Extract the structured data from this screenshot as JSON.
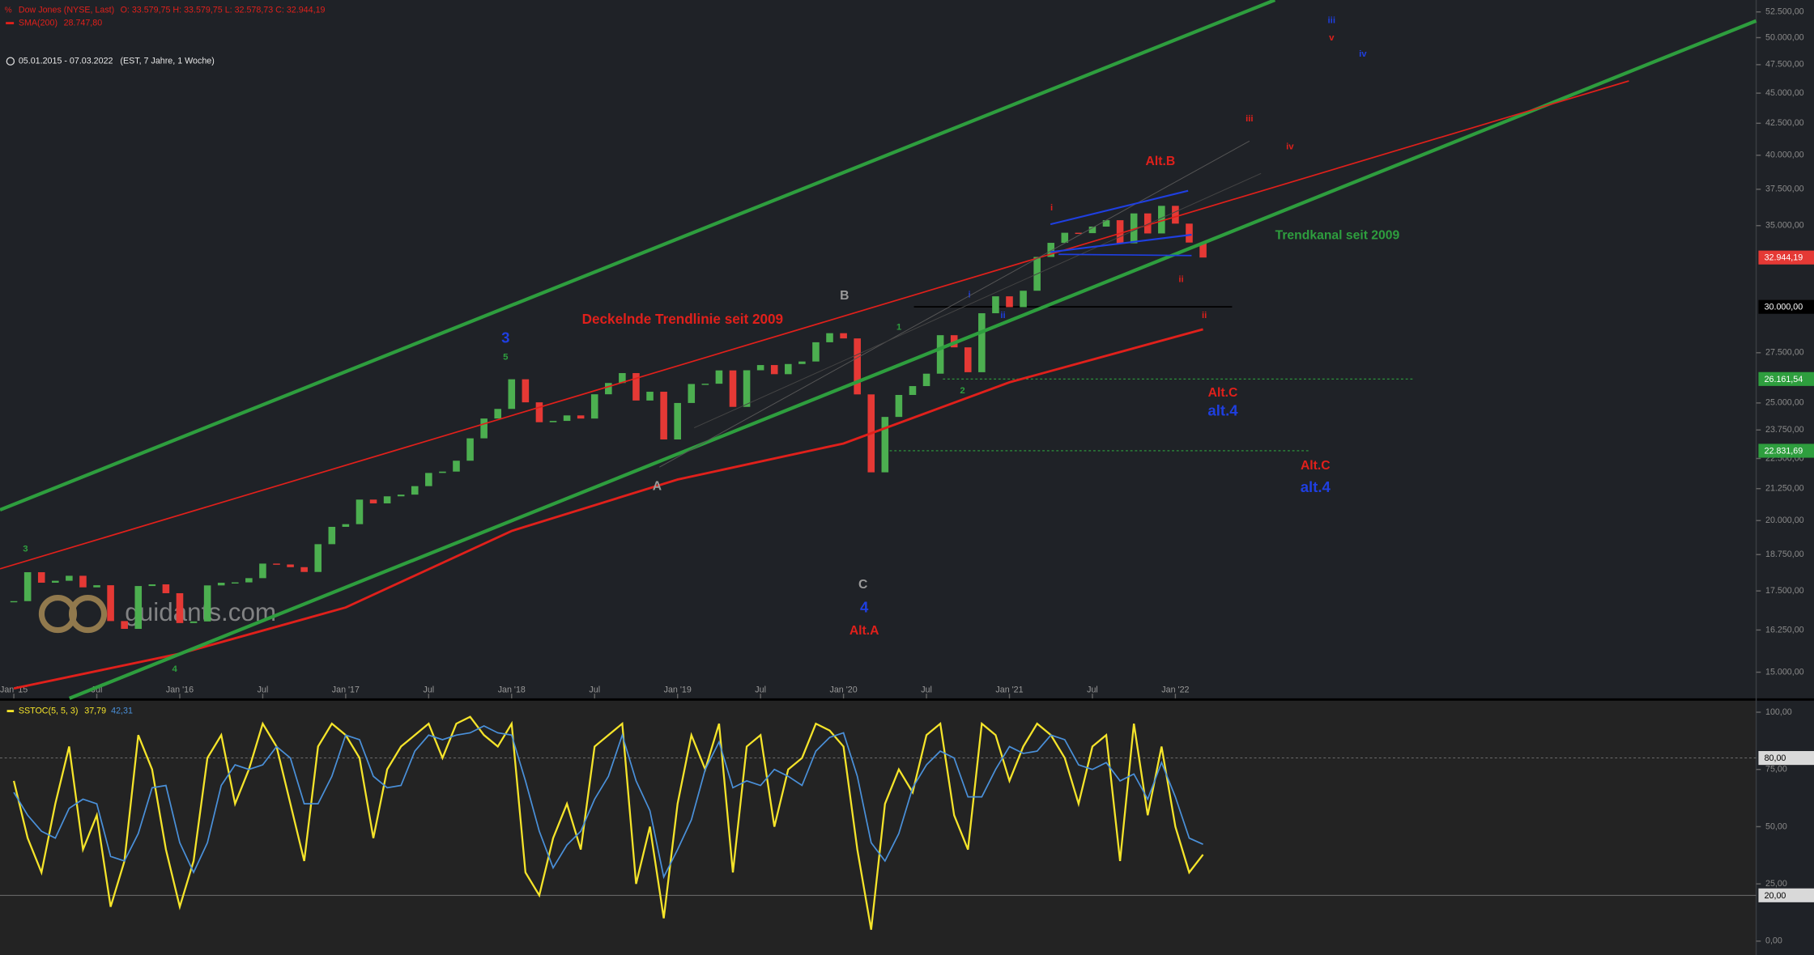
{
  "chart_data": [
    {
      "type": "candlestick",
      "subtitle": "05.01.2015 - 07.03.2022   (EST, 7 Jahre, 1 Woche)",
      "header_values": "O: 33.579,75   H: 33.579,75   L: 32.578,73   C: 32.944,19",
      "watermark": "guidants.com",
      "log_scale": true,
      "xlim": [
        "2014-12",
        "2025-07"
      ],
      "xticks": [
        {
          "value": "2015-01",
          "label": "Jan '15"
        },
        {
          "value": "2015-07",
          "label": "Jul"
        },
        {
          "value": "2016-01",
          "label": "Jan '16"
        },
        {
          "value": "2016-07",
          "label": "Jul"
        },
        {
          "value": "2017-01",
          "label": "Jan '17"
        },
        {
          "value": "2017-07",
          "label": "Jul"
        },
        {
          "value": "2018-01",
          "label": "Jan '18"
        },
        {
          "value": "2018-07",
          "label": "Jul"
        },
        {
          "value": "2019-01",
          "label": "Jan '19"
        },
        {
          "value": "2019-07",
          "label": "Jul"
        },
        {
          "value": "2020-01",
          "label": "Jan '20"
        },
        {
          "value": "2020-07",
          "label": "Jul"
        },
        {
          "value": "2021-01",
          "label": "Jan '21"
        },
        {
          "value": "2021-07",
          "label": "Jul"
        },
        {
          "value": "2022-01",
          "label": "Jan '22"
        }
      ],
      "ylim": [
        14400,
        53700
      ],
      "yticks": [
        {
          "value": 52500,
          "label": "52.500,00"
        },
        {
          "value": 50000,
          "label": "50.000,00"
        },
        {
          "value": 47500,
          "label": "47.500,00"
        },
        {
          "value": 45000,
          "label": "45.000,00"
        },
        {
          "value": 42500,
          "label": "42.500,00"
        },
        {
          "value": 40000,
          "label": "40.000,00"
        },
        {
          "value": 37500,
          "label": "37.500,00"
        },
        {
          "value": 35000,
          "label": "35.000,00"
        },
        {
          "value": 27500,
          "label": "27.500,00"
        },
        {
          "value": 25000,
          "label": "25.000,00"
        },
        {
          "value": 23750,
          "label": "23.750,00"
        },
        {
          "value": 22500,
          "label": "22.500,00"
        },
        {
          "value": 21250,
          "label": "21.250,00"
        },
        {
          "value": 20000,
          "label": "20.000,00"
        },
        {
          "value": 18750,
          "label": "18.750,00"
        },
        {
          "value": 17500,
          "label": "17.500,00"
        },
        {
          "value": 16250,
          "label": "16.250,00"
        },
        {
          "value": 15000,
          "label": "15.000,00"
        }
      ],
      "price_tags": [
        {
          "value": 32944.19,
          "label": "32.944,19",
          "color": "#e53935"
        },
        {
          "value": 30000,
          "label": "30.000,00",
          "color": "#000000"
        },
        {
          "value": 26161.54,
          "label": "26.161,54",
          "color": "#2e9e3e"
        },
        {
          "value": 22831.69,
          "label": "22.831,69",
          "color": "#2e9e3e"
        }
      ],
      "series": [
        {
          "name": "Dow Jones (NYSE, Last)",
          "color": "#4caf50",
          "down_color": "#e53935",
          "x": [
            "2015-01",
            "2015-02",
            "2015-03",
            "2015-04",
            "2015-05",
            "2015-06",
            "2015-07",
            "2015-08",
            "2015-09",
            "2015-10",
            "2015-11",
            "2015-12",
            "2016-01",
            "2016-02",
            "2016-03",
            "2016-04",
            "2016-05",
            "2016-06",
            "2016-07",
            "2016-08",
            "2016-09",
            "2016-10",
            "2016-11",
            "2016-12",
            "2017-01",
            "2017-02",
            "2017-03",
            "2017-04",
            "2017-05",
            "2017-06",
            "2017-07",
            "2017-08",
            "2017-09",
            "2017-10",
            "2017-11",
            "2017-12",
            "2018-01",
            "2018-02",
            "2018-03",
            "2018-04",
            "2018-05",
            "2018-06",
            "2018-07",
            "2018-08",
            "2018-09",
            "2018-10",
            "2018-11",
            "2018-12",
            "2019-01",
            "2019-02",
            "2019-03",
            "2019-04",
            "2019-05",
            "2019-06",
            "2019-07",
            "2019-08",
            "2019-09",
            "2019-10",
            "2019-11",
            "2019-12",
            "2020-01",
            "2020-02",
            "2020-03",
            "2020-04",
            "2020-05",
            "2020-06",
            "2020-07",
            "2020-08",
            "2020-09",
            "2020-10",
            "2020-11",
            "2020-12",
            "2021-01",
            "2021-02",
            "2021-03",
            "2021-04",
            "2021-05",
            "2021-06",
            "2021-07",
            "2021-08",
            "2021-09",
            "2021-10",
            "2021-11",
            "2021-12",
            "2022-01",
            "2022-02",
            "2022-03"
          ],
          "values": [
            17165,
            18133,
            17776,
            17841,
            18011,
            17620,
            17690,
            16528,
            16285,
            17664,
            17720,
            17425,
            16466,
            16517,
            17685,
            17774,
            17787,
            17930,
            18432,
            18401,
            18308,
            18142,
            19124,
            19763,
            19864,
            20812,
            20663,
            20941,
            21009,
            21350,
            21891,
            21948,
            22405,
            23377,
            24272,
            24719,
            26149,
            25029,
            24103,
            24163,
            24416,
            24271,
            25415,
            25965,
            26458,
            25116,
            25538,
            23327,
            24999,
            25916,
            25929,
            26593,
            24815,
            26600,
            26864,
            26403,
            26917,
            27046,
            28051,
            28538,
            28256,
            25409,
            21917,
            24346,
            25383,
            25813,
            26428,
            28430,
            27782,
            26502,
            29639,
            30606,
            29983,
            30932,
            32982,
            33875,
            34529,
            34503,
            34935,
            35361,
            33844,
            35820,
            34484,
            36338,
            35132,
            33893,
            32944.19
          ]
        },
        {
          "name": "SMA(200)",
          "color": "#e0201b",
          "value_label": "28.747,80",
          "x": [
            "2015-01",
            "2016-01",
            "2017-01",
            "2018-01",
            "2019-01",
            "2020-01",
            "2021-01",
            "2022-03"
          ],
          "values": [
            14545,
            15536,
            16960,
            19610,
            21620,
            23150,
            26000,
            28747.8
          ]
        }
      ],
      "annotations": [
        {
          "text": "Deckelnde Trendlinie seit 2009",
          "color": "#e0201b"
        },
        {
          "text": "Trendkanal seit 2009",
          "color": "#2e9e3e"
        },
        {
          "text": "3",
          "color": "#1f3fe0"
        },
        {
          "text": "5",
          "color": "#2e9e3e"
        },
        {
          "text": "B",
          "color": "#9a9a9a"
        },
        {
          "text": "A",
          "color": "#9a9a9a"
        },
        {
          "text": "C",
          "color": "#9a9a9a"
        },
        {
          "text": "4",
          "color": "#1f3fe0"
        },
        {
          "text": "Alt.A",
          "color": "#e0201b"
        },
        {
          "text": "Alt.B",
          "color": "#e0201b"
        },
        {
          "text": "Alt.C",
          "color": "#e0201b"
        },
        {
          "text": "alt.4",
          "color": "#1f3fe0"
        },
        {
          "text": "Alt.C",
          "color": "#e0201b"
        },
        {
          "text": "alt.4",
          "color": "#1f3fe0"
        },
        {
          "text": "3",
          "color": "#2e9e3e"
        },
        {
          "text": "4",
          "color": "#2e9e3e"
        },
        {
          "text": "1",
          "color": "#2e9e3e"
        },
        {
          "text": "2",
          "color": "#2e9e3e"
        },
        {
          "text": "i",
          "color": "#e0201b"
        },
        {
          "text": "ii",
          "color": "#e0201b"
        },
        {
          "text": "ii",
          "color": "#e0201b"
        },
        {
          "text": "iii",
          "color": "#e0201b"
        },
        {
          "text": "iv",
          "color": "#e0201b"
        },
        {
          "text": "iii",
          "color": "#1f3fe0"
        },
        {
          "text": "v",
          "color": "#e0201b"
        },
        {
          "text": "iv",
          "color": "#1f3fe0"
        },
        {
          "text": "i",
          "color": "#1f3fe0"
        },
        {
          "text": "ii",
          "color": "#1f3fe0"
        }
      ]
    },
    {
      "type": "line",
      "xlim": [
        "2014-12",
        "2025-07"
      ],
      "ylim": [
        0,
        100
      ],
      "yticks": [
        {
          "value": 100,
          "label": "100,00"
        },
        {
          "value": 75,
          "label": "75,00"
        },
        {
          "value": 50,
          "label": "50,00"
        },
        {
          "value": 25,
          "label": "25,00"
        },
        {
          "value": 0,
          "label": "0,00"
        }
      ],
      "levels": [
        {
          "value": 80,
          "label": "80,00"
        },
        {
          "value": 20,
          "label": "20,00"
        }
      ],
      "series": [
        {
          "name": "SSTOC(5, 5, 3)",
          "color": "#f5e42a",
          "value_label": "37,79",
          "values": [
            70,
            45,
            30,
            60,
            85,
            40,
            55,
            15,
            35,
            90,
            75,
            40,
            15,
            35,
            80,
            90,
            60,
            75,
            95,
            85,
            60,
            35,
            85,
            95,
            90,
            80,
            45,
            75,
            85,
            90,
            95,
            80,
            95,
            98,
            90,
            85,
            95,
            30,
            20,
            45,
            60,
            40,
            85,
            90,
            95,
            25,
            50,
            10,
            60,
            90,
            75,
            95,
            30,
            85,
            90,
            50,
            75,
            80,
            95,
            92,
            85,
            40,
            5,
            60,
            75,
            65,
            90,
            95,
            55,
            40,
            95,
            90,
            70,
            85,
            95,
            90,
            80,
            60,
            85,
            90,
            35,
            95,
            55,
            85,
            50,
            30,
            37.79
          ]
        },
        {
          "color": "#4a90d9",
          "value_label": "42,31",
          "values": [
            65,
            55,
            48,
            45,
            58,
            62,
            60,
            37,
            35,
            47,
            67,
            68,
            43,
            30,
            43,
            68,
            77,
            75,
            77,
            85,
            80,
            60,
            60,
            72,
            90,
            88,
            72,
            67,
            68,
            83,
            90,
            88,
            90,
            91,
            94,
            91,
            90,
            70,
            48,
            32,
            42,
            48,
            62,
            72,
            90,
            70,
            57,
            28,
            40,
            53,
            75,
            87,
            67,
            70,
            68,
            75,
            72,
            68,
            83,
            89,
            91,
            72,
            43,
            35,
            47,
            67,
            77,
            83,
            80,
            63,
            63,
            75,
            85,
            82,
            83,
            90,
            88,
            77,
            75,
            78,
            70,
            73,
            62,
            78,
            63,
            45,
            42.31
          ]
        }
      ]
    }
  ]
}
